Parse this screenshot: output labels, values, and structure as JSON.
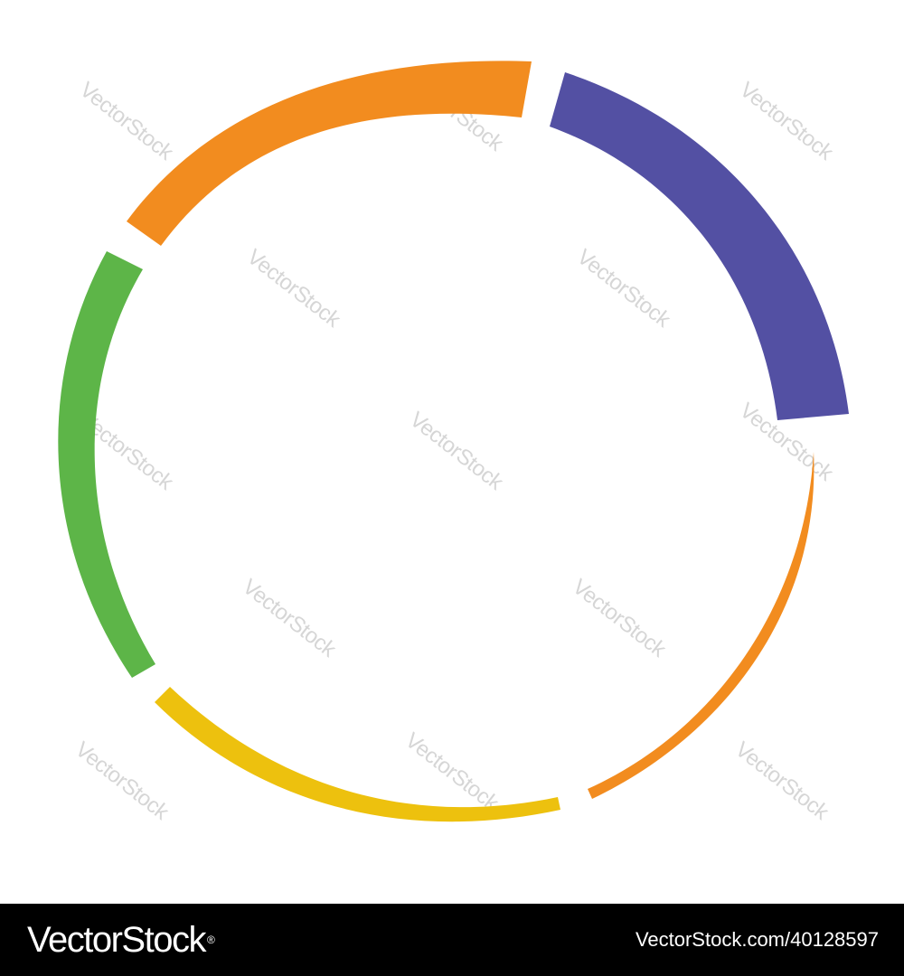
{
  "watermark_text": "VectorStock",
  "footer": {
    "logo_text": "VectorStock",
    "logo_mark": "®",
    "image_id": "VectorStock.com/40128597"
  },
  "colors": {
    "orange": "#f28c1f",
    "purple": "#5350a3",
    "green": "#5db548",
    "yellow": "#edc10e",
    "footer_bg": "#000000",
    "watermark": "#d6d6d6"
  },
  "segments": [
    {
      "name": "orange-arc",
      "color": "orange"
    },
    {
      "name": "purple-arc",
      "color": "purple"
    },
    {
      "name": "orange-thin-arc",
      "color": "orange"
    },
    {
      "name": "yellow-arc",
      "color": "yellow"
    },
    {
      "name": "green-arc",
      "color": "green"
    }
  ]
}
